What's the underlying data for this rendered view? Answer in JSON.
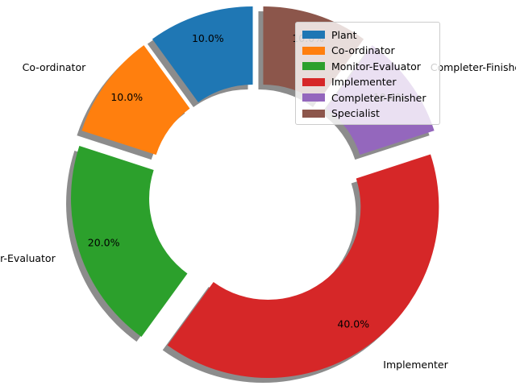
{
  "chart_data": {
    "type": "pie",
    "variant": "donut-exploded-shadow",
    "categories": [
      "Plant",
      "Co-ordinator",
      "Monitor-Evaluator",
      "Implementer",
      "Completer-Finisher",
      "Specialist"
    ],
    "values": [
      10,
      10,
      20,
      40,
      10,
      10
    ],
    "percent_labels": [
      "10.0%",
      "10.0%",
      "20.0%",
      "40.0%",
      "10.0%",
      "10.0%"
    ],
    "explode": [
      0.1,
      0.1,
      0.1,
      0.1,
      0.1,
      0.1
    ],
    "start_angle_deg": 90,
    "colors": [
      "#1f77b4",
      "#ff7f0e",
      "#2ca02c",
      "#d62728",
      "#9467bd",
      "#8c564b"
    ],
    "legend_position": "upper-right",
    "title": ""
  }
}
